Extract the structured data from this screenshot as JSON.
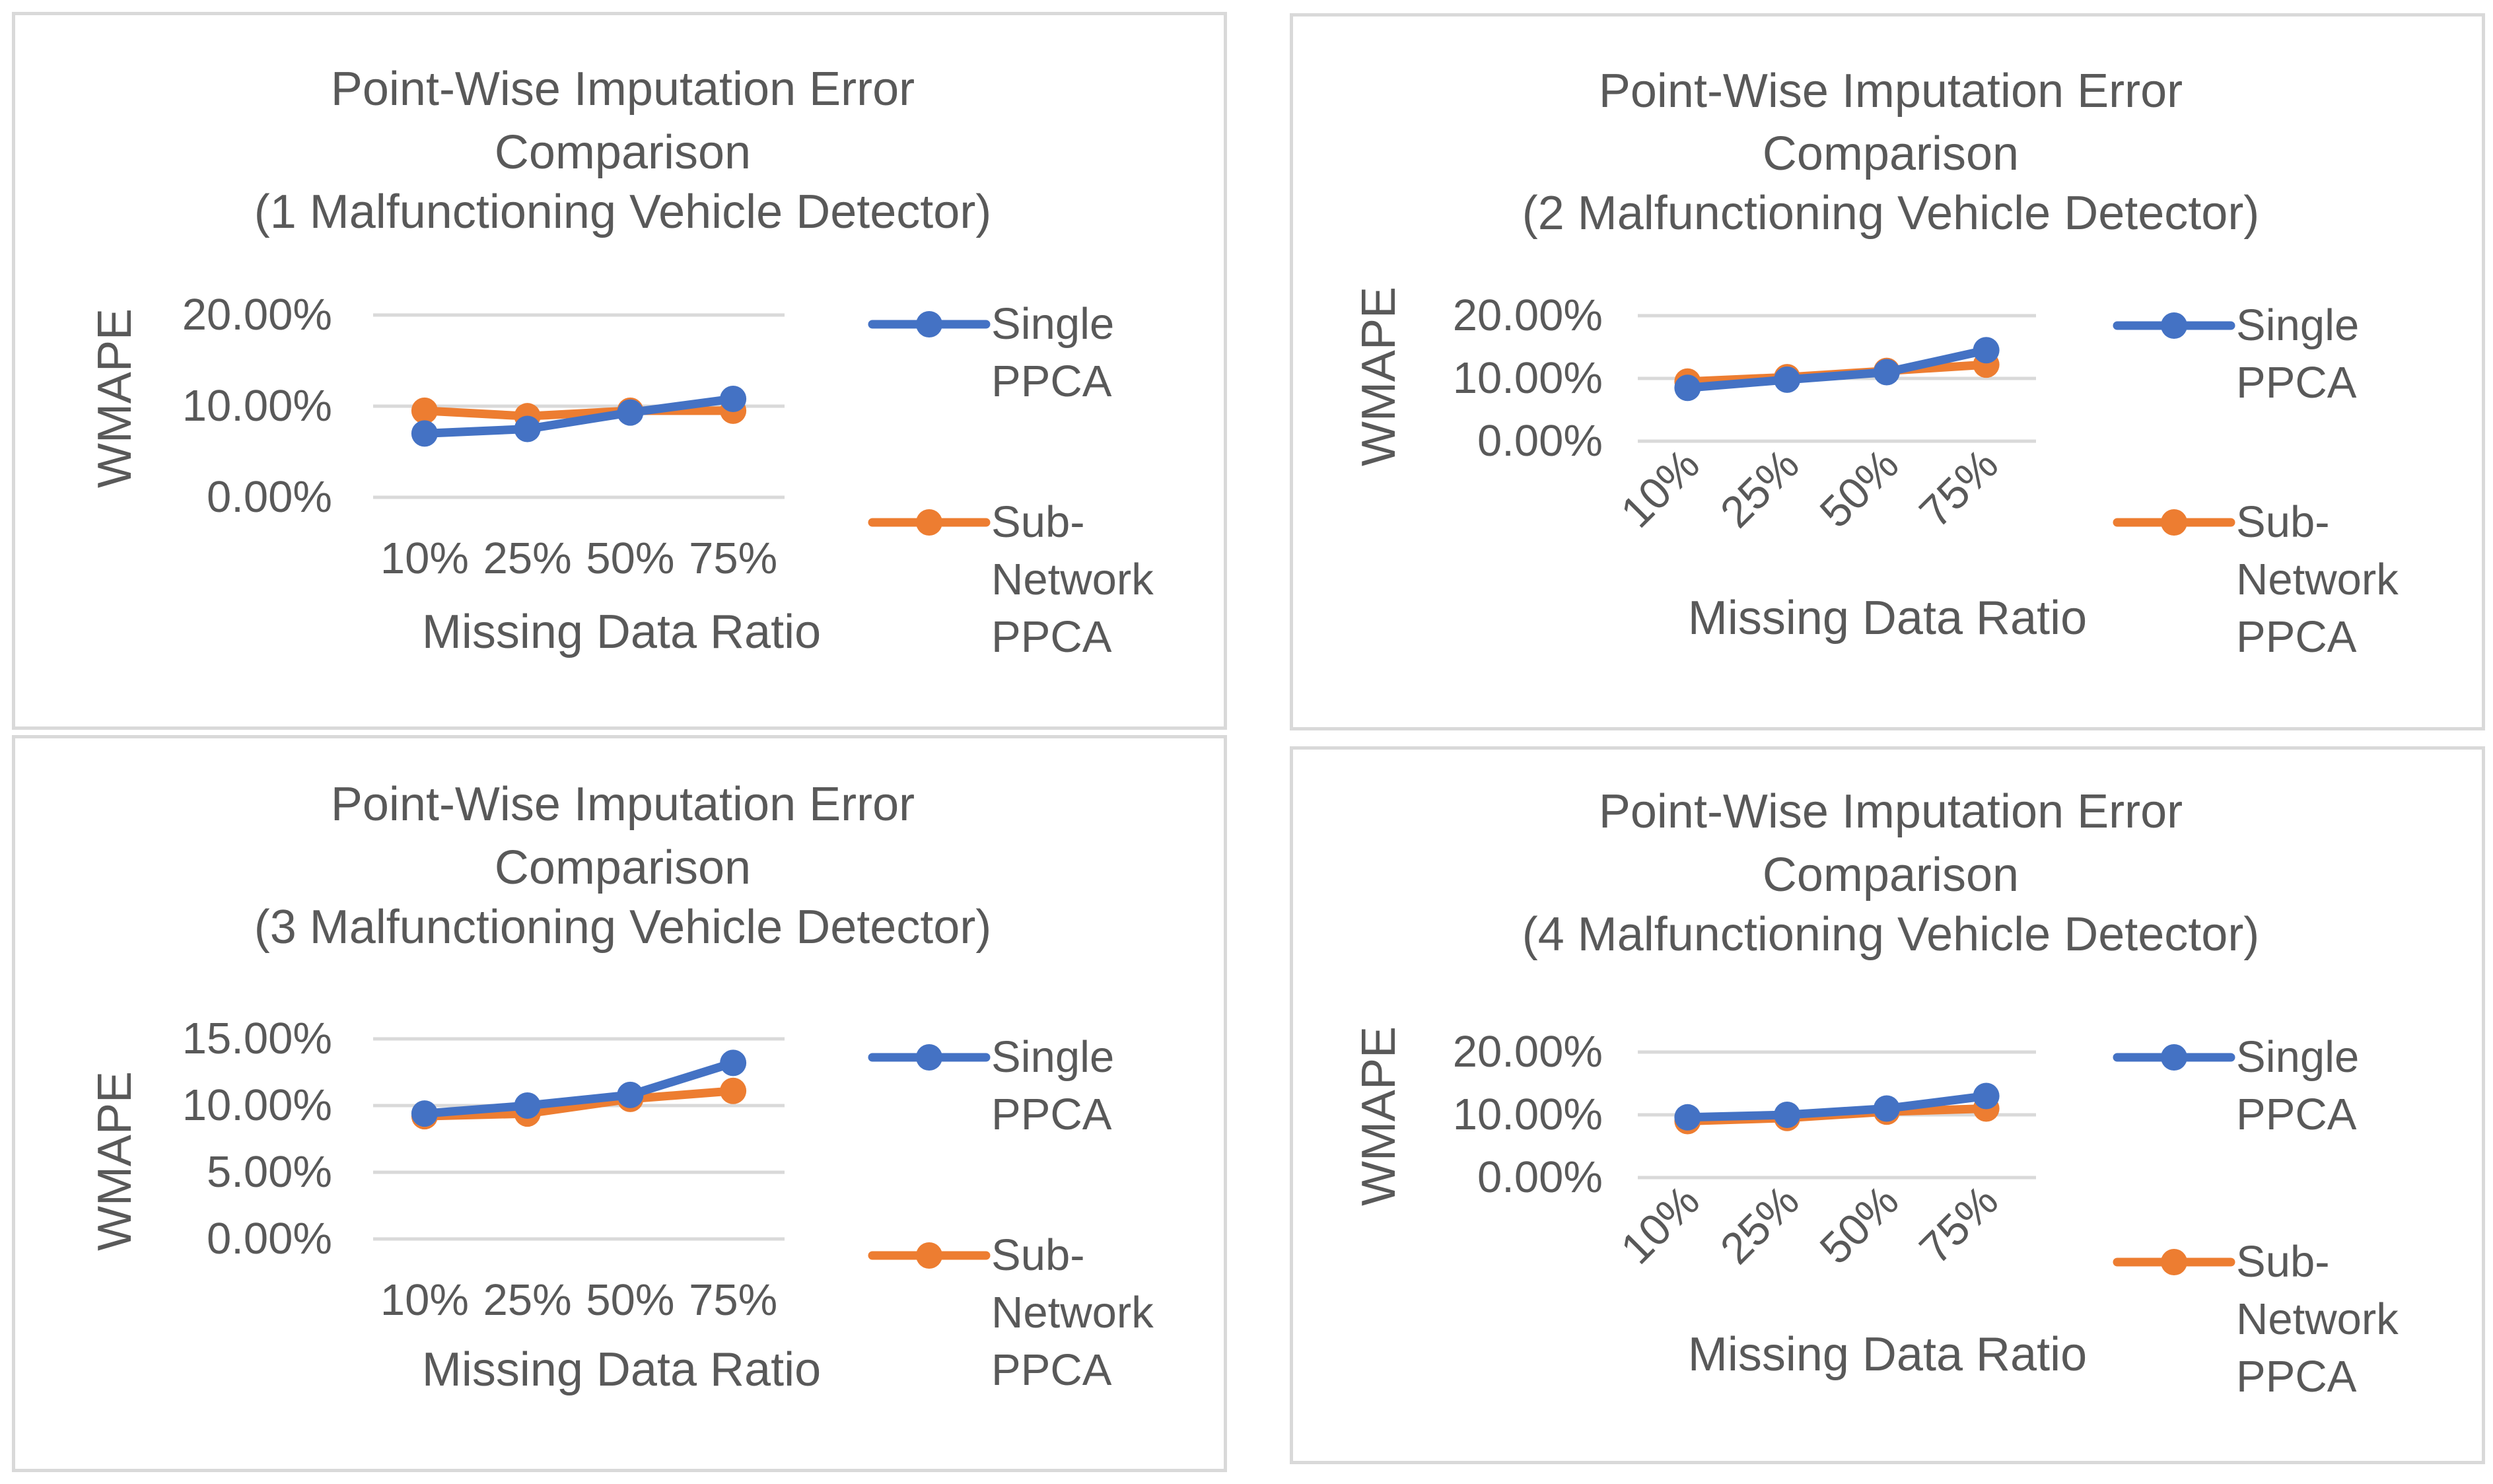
{
  "chart_data": [
    {
      "type": "line",
      "title_lines": [
        "Point-Wise Imputation Error",
        "Comparison",
        "(1 Malfunctioning  Vehicle Detector)"
      ],
      "xlabel": "Missing Data Ratio",
      "ylabel": "WMAPE",
      "categories": [
        "10%",
        "25%",
        "50%",
        "75%"
      ],
      "yticks": [
        "0.00%",
        "10.00%",
        "20.00%"
      ],
      "ylim": [
        0,
        20
      ],
      "rotated_x_labels": false,
      "legend_position": "right",
      "series": [
        {
          "name": "Single PPCA",
          "legend_lines": [
            "Single",
            "PPCA"
          ],
          "color": "#4472C4",
          "values": [
            7.0,
            7.5,
            9.3,
            10.8
          ]
        },
        {
          "name": "Sub-Network PPCA",
          "legend_lines": [
            "Sub-",
            "Network",
            "PPCA"
          ],
          "color": "#ED7D31",
          "values": [
            9.5,
            8.9,
            9.5,
            9.5
          ]
        }
      ]
    },
    {
      "type": "line",
      "title_lines": [
        "Point-Wise Imputation Error",
        "Comparison",
        "(2 Malfunctioning  Vehicle Detector)"
      ],
      "xlabel": "Missing Data Ratio",
      "ylabel": "WMAPE",
      "categories": [
        "10%",
        "25%",
        "50%",
        "75%"
      ],
      "yticks": [
        "0.00%",
        "10.00%",
        "20.00%"
      ],
      "ylim": [
        0,
        20
      ],
      "rotated_x_labels": true,
      "legend_position": "right",
      "series": [
        {
          "name": "Single PPCA",
          "legend_lines": [
            "Single",
            "PPCA"
          ],
          "color": "#4472C4",
          "values": [
            8.5,
            9.8,
            11.0,
            14.5
          ]
        },
        {
          "name": "Sub-Network PPCA",
          "legend_lines": [
            "Sub-",
            "Network",
            "PPCA"
          ],
          "color": "#ED7D31",
          "values": [
            9.5,
            10.2,
            11.2,
            12.2
          ]
        }
      ]
    },
    {
      "type": "line",
      "title_lines": [
        "Point-Wise Imputation Error",
        "Comparison",
        "(3 Malfunctioning Vehicle Detector)"
      ],
      "xlabel": "Missing Data Ratio",
      "ylabel": "WMAPE",
      "categories": [
        "10%",
        "25%",
        "50%",
        "75%"
      ],
      "yticks": [
        "0.00%",
        "5.00%",
        "10.00%",
        "15.00%"
      ],
      "ylim": [
        0,
        15
      ],
      "rotated_x_labels": false,
      "legend_position": "right",
      "series": [
        {
          "name": "Single PPCA",
          "legend_lines": [
            "Single",
            "PPCA"
          ],
          "color": "#4472C4",
          "values": [
            9.4,
            10.0,
            10.8,
            13.2
          ]
        },
        {
          "name": "Sub-Network PPCA",
          "legend_lines": [
            "Sub-",
            "Network",
            "PPCA"
          ],
          "color": "#ED7D31",
          "values": [
            9.2,
            9.4,
            10.5,
            11.1
          ]
        }
      ]
    },
    {
      "type": "line",
      "title_lines": [
        "Point-Wise Imputation Error",
        "Comparison",
        "(4 Malfunctioning Vehicle Detector)"
      ],
      "xlabel": "Missing Data Ratio",
      "ylabel": "WMAPE",
      "categories": [
        "10%",
        "25%",
        "50%",
        "75%"
      ],
      "yticks": [
        "0.00%",
        "10.00%",
        "20.00%"
      ],
      "ylim": [
        0,
        20
      ],
      "rotated_x_labels": true,
      "legend_position": "right",
      "series": [
        {
          "name": "Single PPCA",
          "legend_lines": [
            "Single",
            "PPCA"
          ],
          "color": "#4472C4",
          "values": [
            9.6,
            10.0,
            11.0,
            13.0
          ]
        },
        {
          "name": "Sub-Network PPCA",
          "legend_lines": [
            "Sub-",
            "Network",
            "PPCA"
          ],
          "color": "#ED7D31",
          "values": [
            9.0,
            9.5,
            10.5,
            11.0
          ]
        }
      ]
    }
  ]
}
